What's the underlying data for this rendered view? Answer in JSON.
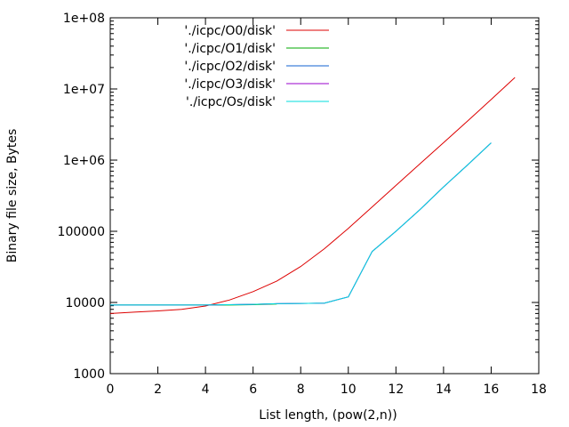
{
  "chart_data": {
    "type": "line",
    "title": "",
    "xlabel": "List length, (pow(2,n))",
    "ylabel": "Binary file size, Bytes",
    "xlim": [
      0,
      18
    ],
    "ylim": [
      1000,
      100000000
    ],
    "yscale": "log",
    "grid": false,
    "legend_position": "top-left",
    "xticks": [
      0,
      2,
      4,
      6,
      8,
      10,
      12,
      14,
      16,
      18
    ],
    "yticks": [
      1000,
      10000,
      100000,
      1000000,
      10000000,
      100000000
    ],
    "ytick_labels": [
      "1000",
      "10000",
      "100000",
      "1e+06",
      "1e+07",
      "1e+08"
    ],
    "series": [
      {
        "name": "'./icpc/O0/disk'",
        "color": "#dd0000",
        "x": [
          0,
          1,
          2,
          3,
          4,
          5,
          6,
          7,
          8,
          9,
          10,
          11,
          12,
          13,
          14,
          15,
          16,
          17
        ],
        "y": [
          7000,
          7300,
          7600,
          8000,
          8900,
          10800,
          14200,
          20000,
          32000,
          57000,
          110000,
          220000,
          440000,
          880000,
          1760000,
          3520000,
          7100000,
          14500000
        ]
      },
      {
        "name": "'./icpc/O1/disk'",
        "color": "#00aa00",
        "x": [
          0,
          1,
          2,
          3,
          4,
          5,
          6,
          7
        ],
        "y": [
          9200,
          9200,
          9200,
          9200,
          9200,
          9200,
          9300,
          9500
        ]
      },
      {
        "name": "'./icpc/O2/disk'",
        "color": "#1060d0",
        "x": [
          0,
          1,
          2,
          3,
          4,
          5,
          6,
          7,
          8,
          9,
          10,
          11,
          12,
          13,
          14,
          15,
          16
        ],
        "y": [
          9200,
          9200,
          9200,
          9200,
          9200,
          9300,
          9400,
          9600,
          9700,
          9800,
          12000,
          52000,
          100000,
          200000,
          420000,
          850000,
          1750000
        ]
      },
      {
        "name": "'./icpc/O3/disk'",
        "color": "#9900cc",
        "x": [
          0,
          1,
          2,
          3,
          4,
          5,
          6,
          7,
          8,
          9,
          10,
          11,
          12,
          13,
          14,
          15,
          16
        ],
        "y": [
          9200,
          9200,
          9200,
          9200,
          9200,
          9300,
          9400,
          9600,
          9700,
          9800,
          12000,
          52000,
          100000,
          200000,
          420000,
          850000,
          1750000
        ]
      },
      {
        "name": "'./icpc/Os/disk'",
        "color": "#00dddd",
        "x": [
          0,
          1,
          2,
          3,
          4,
          5,
          6,
          7,
          8,
          9,
          10,
          11,
          12,
          13,
          14,
          15,
          16
        ],
        "y": [
          9200,
          9200,
          9200,
          9200,
          9200,
          9300,
          9400,
          9600,
          9700,
          9800,
          12000,
          52000,
          100000,
          200000,
          420000,
          850000,
          1750000
        ]
      }
    ]
  }
}
